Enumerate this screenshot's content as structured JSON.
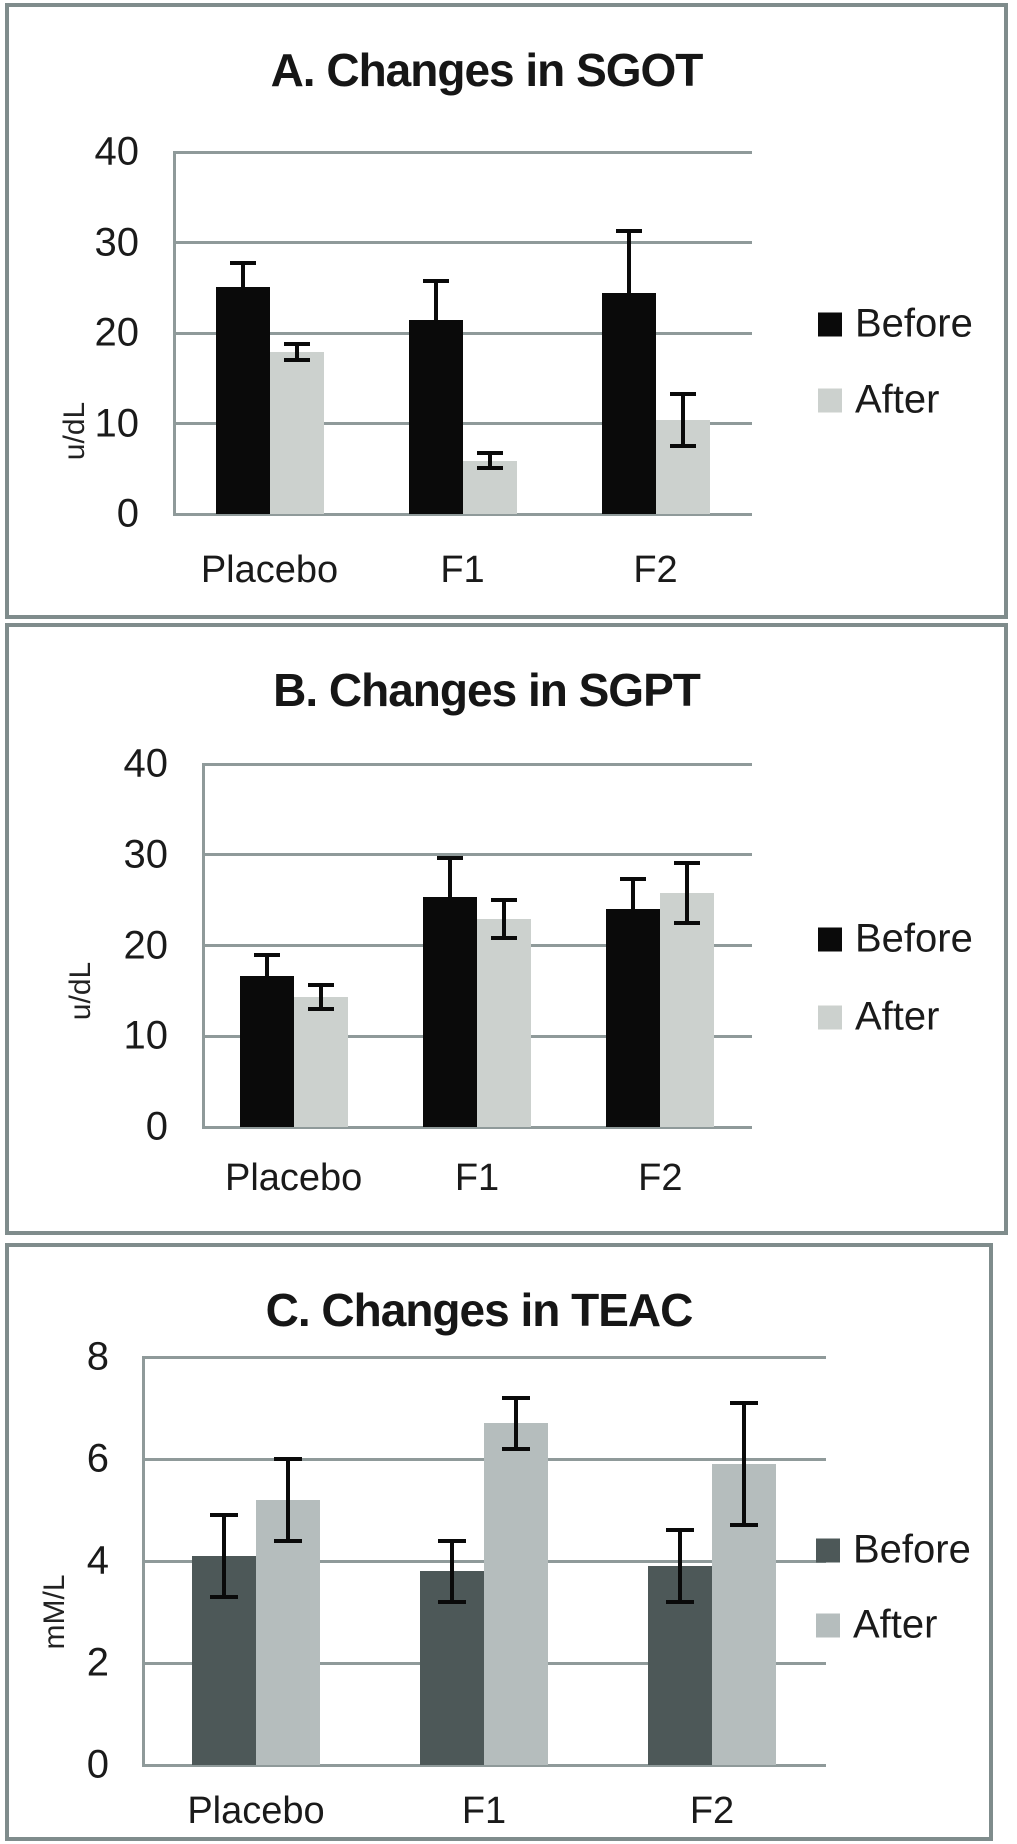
{
  "figure": {
    "description_labels": {
      "panel_a": "A. Changes in SGOT",
      "panel_b": "B. Changes in SGPT",
      "panel_c": "C. Changes in TEAC"
    },
    "colors": {
      "panel_border": "#7f8c8c",
      "gridline": "#8f9a9a",
      "before_dark_black": "#0a0a0a",
      "after_light_gray": "#ccd1ce",
      "teac_before_gray": "#4d5858",
      "teac_after_gray": "#b5bdbd"
    }
  },
  "chart_data": [
    {
      "id": "A",
      "type": "bar",
      "title": "A. Changes in SGOT",
      "xlabel": "",
      "ylabel": "u/dL",
      "categories": [
        "Placebo",
        "F1",
        "F2"
      ],
      "yticks": [
        0,
        10,
        20,
        30,
        40
      ],
      "ylim": [
        0,
        40
      ],
      "grid": true,
      "legend_position": "right",
      "error_bars": true,
      "series": [
        {
          "name": "Before",
          "color": "#0a0a0a",
          "values": [
            25.1,
            21.4,
            24.4
          ],
          "errors": [
            2.6,
            4.4,
            6.9
          ]
        },
        {
          "name": "After",
          "color": "#ccd1ce",
          "values": [
            17.9,
            5.9,
            10.4
          ],
          "errors": [
            0.9,
            0.8,
            2.9
          ]
        }
      ]
    },
    {
      "id": "B",
      "type": "bar",
      "title": "B. Changes in SGPT",
      "xlabel": "",
      "ylabel": "u/dL",
      "categories": [
        "Placebo",
        "F1",
        "F2"
      ],
      "yticks": [
        0,
        10,
        20,
        30,
        40
      ],
      "ylim": [
        0,
        40
      ],
      "grid": true,
      "legend_position": "right",
      "error_bars": true,
      "series": [
        {
          "name": "Before",
          "color": "#0a0a0a",
          "values": [
            16.6,
            25.3,
            24.0
          ],
          "errors": [
            2.3,
            4.3,
            3.3
          ]
        },
        {
          "name": "After",
          "color": "#ccd1ce",
          "values": [
            14.3,
            22.9,
            25.8
          ],
          "errors": [
            1.3,
            2.1,
            3.3
          ]
        }
      ]
    },
    {
      "id": "C",
      "type": "bar",
      "title": "C. Changes in TEAC",
      "xlabel": "",
      "ylabel": "mM/L",
      "categories": [
        "Placebo",
        "F1",
        "F2"
      ],
      "yticks": [
        0,
        2,
        4,
        6,
        8
      ],
      "ylim": [
        0,
        8
      ],
      "grid": true,
      "legend_position": "right",
      "error_bars": true,
      "series": [
        {
          "name": "Before",
          "color": "#4d5858",
          "values": [
            4.1,
            3.8,
            3.9
          ],
          "errors": [
            0.8,
            0.6,
            0.7
          ]
        },
        {
          "name": "After",
          "color": "#b5bdbd",
          "values": [
            5.2,
            6.7,
            5.9
          ],
          "errors": [
            0.8,
            0.5,
            1.2
          ]
        }
      ]
    }
  ]
}
